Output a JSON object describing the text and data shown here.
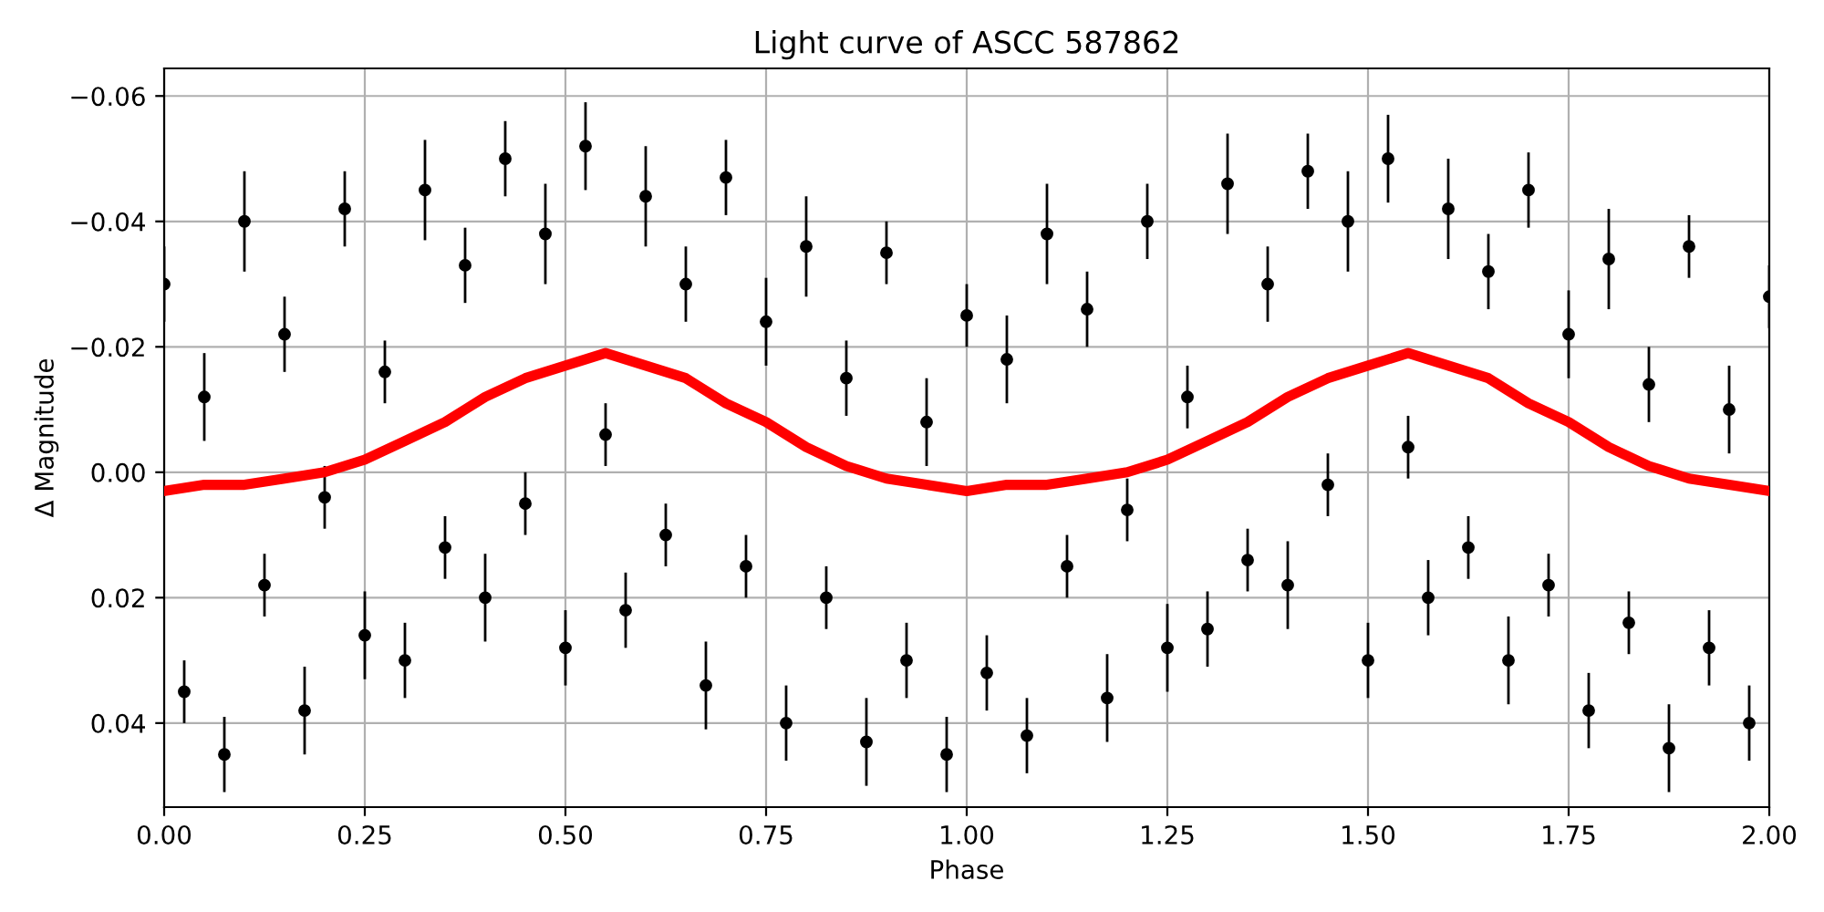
{
  "chart_data": {
    "type": "scatter",
    "title": "Light curve of ASCC 587862",
    "xlabel": "Phase",
    "ylabel": "Δ Magnitude",
    "xlim": [
      0,
      2
    ],
    "xticks": [
      {
        "value": 0,
        "label": "0.00"
      },
      0.25,
      {
        "value": 0.5,
        "label": "0.50"
      },
      0.75,
      {
        "value": 1,
        "label": "1.00"
      },
      1.25,
      {
        "value": 1.5,
        "label": "1.50"
      },
      1.75,
      {
        "value": 2,
        "label": "2.00"
      }
    ],
    "ylim": [
      0.0534,
      -0.0644
    ],
    "yticks": [
      {
        "value": -0.06,
        "label": "−0.06"
      },
      {
        "value": -0.04,
        "label": "−0.04"
      },
      {
        "value": -0.02,
        "label": "−0.02"
      },
      {
        "value": 0,
        "label": "0.00"
      },
      {
        "value": 0.02,
        "label": "0.02"
      },
      {
        "value": 0.04,
        "label": "0.04"
      }
    ],
    "grid": true,
    "series": [
      {
        "color": "#000000",
        "marker": "circle",
        "x": [
          0,
          0.025,
          0.05,
          0.075,
          0.1,
          0.125,
          0.15,
          0.175,
          0.2,
          0.225,
          0.25,
          0.275,
          0.3,
          0.325,
          0.35,
          0.375,
          0.4,
          0.425,
          0.45,
          0.475,
          0.5,
          0.525,
          0.55,
          0.575,
          0.6,
          0.625,
          0.65,
          0.675,
          0.7,
          0.725,
          0.75,
          0.775,
          0.8,
          0.825,
          0.85,
          0.875,
          0.9,
          0.925,
          0.95,
          0.975,
          1.0,
          1.025,
          1.05,
          1.075,
          1.1,
          1.125,
          1.15,
          1.175,
          1.2,
          1.225,
          1.25,
          1.275,
          1.3,
          1.325,
          1.35,
          1.375,
          1.4,
          1.425,
          1.45,
          1.475,
          1.5,
          1.525,
          1.55,
          1.575,
          1.6,
          1.625,
          1.65,
          1.675,
          1.7,
          1.725,
          1.75,
          1.775,
          1.8,
          1.825,
          1.85,
          1.875,
          1.9,
          1.925,
          1.95,
          1.975,
          2.0
        ],
        "values": [
          -0.03,
          0.035,
          -0.012,
          0.045,
          -0.04,
          0.018,
          -0.022,
          0.038,
          0.004,
          -0.042,
          0.026,
          -0.016,
          0.03,
          -0.045,
          0.012,
          -0.033,
          0.02,
          -0.05,
          0.005,
          -0.038,
          0.028,
          -0.052,
          -0.006,
          0.022,
          -0.044,
          0.01,
          -0.03,
          0.034,
          -0.047,
          0.015,
          -0.024,
          0.04,
          -0.036,
          0.02,
          -0.015,
          0.043,
          -0.035,
          0.03,
          -0.008,
          0.045,
          -0.025,
          0.032,
          -0.018,
          0.042,
          -0.038,
          0.015,
          -0.026,
          0.036,
          0.006,
          -0.04,
          0.028,
          -0.012,
          0.025,
          -0.046,
          0.014,
          -0.03,
          0.018,
          -0.048,
          0.002,
          -0.04,
          0.03,
          -0.05,
          -0.004,
          0.02,
          -0.042,
          0.012,
          -0.032,
          0.03,
          -0.045,
          0.018,
          -0.022,
          0.038,
          -0.034,
          0.024,
          -0.014,
          0.044,
          -0.036,
          0.028,
          -0.01,
          0.04,
          -0.028
        ],
        "errors": [
          0.006,
          0.005,
          0.007,
          0.006,
          0.008,
          0.005,
          0.006,
          0.007,
          0.005,
          0.006,
          0.007,
          0.005,
          0.006,
          0.008,
          0.005,
          0.006,
          0.007,
          0.006,
          0.005,
          0.008,
          0.006,
          0.007,
          0.005,
          0.006,
          0.008,
          0.005,
          0.006,
          0.007,
          0.006,
          0.005,
          0.007,
          0.006,
          0.008,
          0.005,
          0.006,
          0.007,
          0.005,
          0.006,
          0.007,
          0.006,
          0.005,
          0.006,
          0.007,
          0.006,
          0.008,
          0.005,
          0.006,
          0.007,
          0.005,
          0.006,
          0.007,
          0.005,
          0.006,
          0.008,
          0.005,
          0.006,
          0.007,
          0.006,
          0.005,
          0.008,
          0.006,
          0.007,
          0.005,
          0.006,
          0.008,
          0.005,
          0.006,
          0.007,
          0.006,
          0.005,
          0.007,
          0.006,
          0.008,
          0.005,
          0.006,
          0.007,
          0.005,
          0.006,
          0.007,
          0.006,
          0.005
        ]
      },
      {
        "type": "line",
        "color": "#ff0000",
        "x": [
          0,
          0.05,
          0.1,
          0.15,
          0.2,
          0.25,
          0.3,
          0.35,
          0.4,
          0.45,
          0.5,
          0.55,
          0.6,
          0.65,
          0.7,
          0.75,
          0.8,
          0.85,
          0.9,
          0.95,
          1.0,
          1.05,
          1.1,
          1.15,
          1.2,
          1.25,
          1.3,
          1.35,
          1.4,
          1.45,
          1.5,
          1.55,
          1.6,
          1.65,
          1.7,
          1.75,
          1.8,
          1.85,
          1.9,
          1.95,
          2.0
        ],
        "values": [
          0.003,
          0.002,
          0.002,
          0.001,
          0.0,
          -0.002,
          -0.005,
          -0.008,
          -0.012,
          -0.015,
          -0.017,
          -0.019,
          -0.017,
          -0.015,
          -0.011,
          -0.008,
          -0.004,
          -0.001,
          0.001,
          0.002,
          0.003,
          0.002,
          0.002,
          0.001,
          0.0,
          -0.002,
          -0.005,
          -0.008,
          -0.012,
          -0.015,
          -0.017,
          -0.019,
          -0.017,
          -0.015,
          -0.011,
          -0.008,
          -0.004,
          -0.001,
          0.001,
          0.002,
          0.003
        ]
      }
    ]
  }
}
